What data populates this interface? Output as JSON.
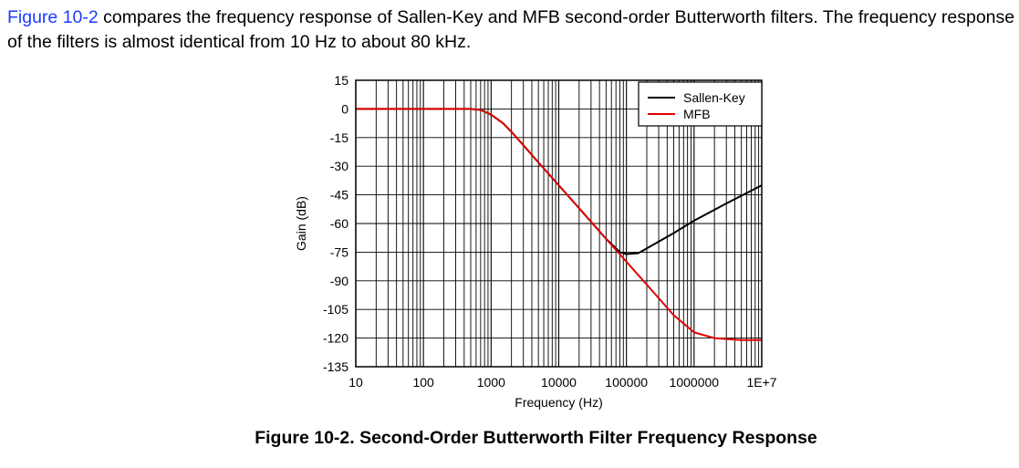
{
  "paragraph": {
    "link_text": "Figure 10-2",
    "body": " compares the frequency response of Sallen-Key and MFB second-order Butterworth filters. The frequency response of the filters is almost identical from 10 Hz to about 80 kHz."
  },
  "caption": "Figure 10-2. Second-Order Butterworth Filter Frequency Response",
  "colors": {
    "link": "#1a3cff",
    "sallen_key": "#000000",
    "mfb": "#e00000"
  },
  "chart_data": {
    "type": "line",
    "title": "",
    "xlabel": "Frequency (Hz)",
    "ylabel": "Gain (dB)",
    "x_scale": "log",
    "xlim": [
      10,
      10000000
    ],
    "ylim": [
      -135,
      15
    ],
    "x_tick_labels": [
      "10",
      "100",
      "1000",
      "10000",
      "100000",
      "1000000",
      "1E+7"
    ],
    "y_tick_labels": [
      "15",
      "0",
      "-15",
      "-30",
      "-45",
      "-60",
      "-75",
      "-90",
      "-105",
      "-120",
      "-135"
    ],
    "grid": true,
    "legend_position": "top-right",
    "series": [
      {
        "name": "Sallen-Key",
        "color": "#000000",
        "x": [
          10,
          100,
          300,
          500,
          700,
          1000,
          1500,
          2000,
          3000,
          5000,
          10000,
          20000,
          50000,
          80000,
          100000,
          150000,
          200000,
          500000,
          1000000,
          3000000,
          10000000
        ],
        "y": [
          0,
          0,
          0,
          0,
          -0.5,
          -3,
          -7.5,
          -12,
          -19,
          -28,
          -40,
          -52,
          -68,
          -75,
          -76,
          -75.5,
          -73,
          -65,
          -58.5,
          -49.5,
          -40
        ]
      },
      {
        "name": "MFB",
        "color": "#e00000",
        "x": [
          10,
          100,
          300,
          500,
          700,
          1000,
          1500,
          2000,
          3000,
          5000,
          10000,
          20000,
          50000,
          100000,
          200000,
          500000,
          1000000,
          2000000,
          3000000,
          5000000,
          10000000
        ],
        "y": [
          0,
          0,
          0,
          0,
          -0.5,
          -3,
          -7.5,
          -12,
          -19,
          -28,
          -40,
          -52,
          -68,
          -80,
          -92,
          -108,
          -117,
          -120,
          -120.5,
          -121,
          -121
        ]
      }
    ]
  }
}
